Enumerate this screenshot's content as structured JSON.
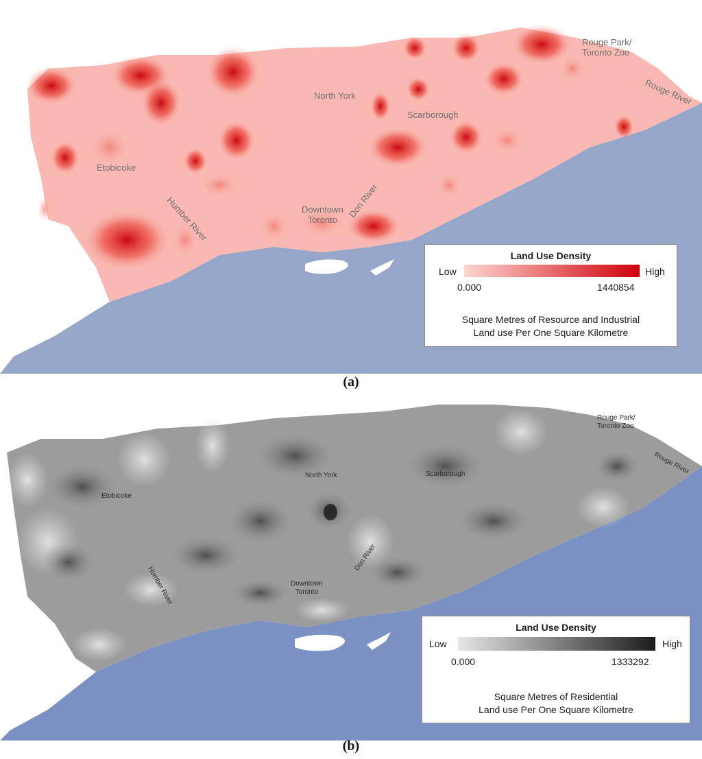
{
  "panels": [
    {
      "caption": "(a)",
      "places": {
        "rouge_park": [
          "Rouge Park/",
          "Toronto Zoo"
        ],
        "rouge_river": "Rouge River",
        "north_york": "North York",
        "scarborough": "Scarborough",
        "etobicoke": "Etobicoke",
        "humber_river": "Humber River",
        "don_river": "Don River",
        "downtown": [
          "Downtown",
          "Toronto"
        ]
      },
      "legend": {
        "title": "Land Use Density",
        "low": "Low",
        "high": "High",
        "min": "0.000",
        "max": "1440854",
        "description": [
          "Square Metres of Resource and Industrial",
          "Land use Per One Square Kilometre"
        ],
        "color_low": "#fdd6d0",
        "color_high": "#d0000a"
      },
      "colors": {
        "lake": "#95a6c9",
        "base": "#f9b9b2"
      }
    },
    {
      "caption": "(b)",
      "places": {
        "rouge_park": [
          "Rouge Park/",
          "Toronto Zoo"
        ],
        "rouge_river": "Rouge River",
        "north_york": "North York",
        "scarborough": "Scarborough",
        "etobicoke": "Etobicoke",
        "humber_river": "Humber River",
        "don_river": "Don River",
        "downtown": [
          "Downtown",
          "Toronto"
        ]
      },
      "legend": {
        "title": "Land Use Density",
        "low": "Low",
        "high": "High",
        "min": "0.000",
        "max": "1333292",
        "description": [
          "Square Metres of Residential",
          "Land use Per One Square Kilometre"
        ],
        "color_low": "#e6e6e6",
        "color_high": "#1c1c1c"
      },
      "colors": {
        "lake": "#7b91c4",
        "base": "#9c9c9c"
      }
    }
  ]
}
